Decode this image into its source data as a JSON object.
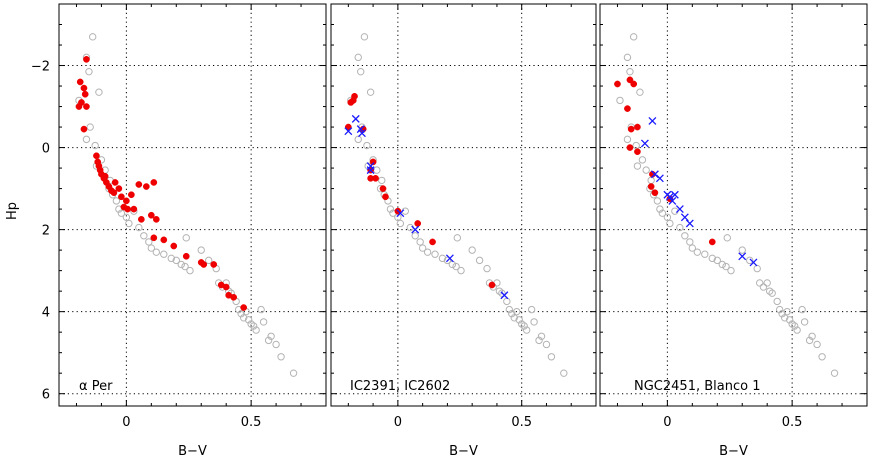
{
  "chart_data": {
    "type": "scatter",
    "shared": {
      "xlabel": "B−V",
      "ylabel": "Hp",
      "xlim": [
        -0.27,
        0.8
      ],
      "ylim": [
        6.3,
        -3.5
      ],
      "x_ticks": [
        0,
        0.5
      ],
      "x_tick_labels": [
        "0",
        "0.5"
      ],
      "y_ticks": [
        -2,
        0,
        2,
        4,
        6
      ],
      "y_tick_labels": [
        "−2",
        "0",
        "2",
        "4",
        "6"
      ],
      "grid": true,
      "reference_sequence": [
        [
          -0.135,
          -2.7
        ],
        [
          -0.16,
          -2.2
        ],
        [
          -0.15,
          -1.85
        ],
        [
          -0.11,
          -1.35
        ],
        [
          -0.19,
          -1.15
        ],
        [
          -0.145,
          -0.5
        ],
        [
          -0.16,
          -0.2
        ],
        [
          -0.125,
          -0.05
        ],
        [
          -0.1,
          0.3
        ],
        [
          -0.12,
          0.45
        ],
        [
          -0.085,
          0.55
        ],
        [
          -0.065,
          0.8
        ],
        [
          -0.07,
          1.0
        ],
        [
          -0.055,
          1.15
        ],
        [
          -0.04,
          1.3
        ],
        [
          -0.03,
          1.5
        ],
        [
          -0.02,
          1.6
        ],
        [
          0.0,
          1.7
        ],
        [
          0.01,
          1.85
        ],
        [
          0.03,
          1.55
        ],
        [
          0.05,
          1.95
        ],
        [
          0.07,
          2.15
        ],
        [
          0.09,
          2.3
        ],
        [
          0.1,
          2.45
        ],
        [
          0.12,
          2.55
        ],
        [
          0.15,
          2.6
        ],
        [
          0.18,
          2.7
        ],
        [
          0.2,
          2.75
        ],
        [
          0.22,
          2.85
        ],
        [
          0.235,
          2.9
        ],
        [
          0.24,
          2.2
        ],
        [
          0.255,
          3.0
        ],
        [
          0.3,
          2.5
        ],
        [
          0.33,
          2.75
        ],
        [
          0.36,
          2.95
        ],
        [
          0.37,
          3.3
        ],
        [
          0.385,
          3.4
        ],
        [
          0.4,
          3.3
        ],
        [
          0.41,
          3.5
        ],
        [
          0.42,
          3.55
        ],
        [
          0.44,
          3.75
        ],
        [
          0.45,
          3.95
        ],
        [
          0.46,
          4.05
        ],
        [
          0.47,
          4.15
        ],
        [
          0.48,
          4.0
        ],
        [
          0.49,
          4.2
        ],
        [
          0.5,
          4.3
        ],
        [
          0.51,
          4.35
        ],
        [
          0.52,
          4.45
        ],
        [
          0.54,
          3.95
        ],
        [
          0.55,
          4.25
        ],
        [
          0.57,
          4.7
        ],
        [
          0.58,
          4.6
        ],
        [
          0.6,
          4.8
        ],
        [
          0.62,
          5.1
        ],
        [
          0.67,
          5.5
        ]
      ]
    },
    "panels": [
      {
        "label": "α Per",
        "series": [
          {
            "marker": "filled-circle",
            "color": "#ee0000",
            "points": [
              [
                -0.16,
                -2.15
              ],
              [
                -0.185,
                -1.6
              ],
              [
                -0.17,
                -1.45
              ],
              [
                -0.165,
                -1.3
              ],
              [
                -0.18,
                -1.1
              ],
              [
                -0.19,
                -1.0
              ],
              [
                -0.16,
                -1.0
              ],
              [
                -0.17,
                -0.45
              ],
              [
                -0.12,
                0.2
              ],
              [
                -0.115,
                0.35
              ],
              [
                -0.11,
                0.45
              ],
              [
                -0.105,
                0.55
              ],
              [
                -0.1,
                0.65
              ],
              [
                -0.09,
                0.75
              ],
              [
                -0.085,
                0.7
              ],
              [
                -0.08,
                0.85
              ],
              [
                -0.07,
                0.95
              ],
              [
                -0.06,
                1.05
              ],
              [
                -0.05,
                1.1
              ],
              [
                -0.045,
                0.85
              ],
              [
                -0.03,
                1.0
              ],
              [
                -0.02,
                1.2
              ],
              [
                0.0,
                1.3
              ],
              [
                0.02,
                1.15
              ],
              [
                0.05,
                0.9
              ],
              [
                0.08,
                0.95
              ],
              [
                0.11,
                0.85
              ],
              [
                -0.01,
                1.45
              ],
              [
                0.005,
                1.5
              ],
              [
                0.03,
                1.5
              ],
              [
                0.06,
                1.75
              ],
              [
                0.1,
                1.65
              ],
              [
                0.12,
                1.75
              ],
              [
                0.11,
                2.2
              ],
              [
                0.15,
                2.25
              ],
              [
                0.19,
                2.4
              ],
              [
                0.24,
                2.65
              ],
              [
                0.3,
                2.8
              ],
              [
                0.31,
                2.85
              ],
              [
                0.35,
                2.85
              ],
              [
                0.38,
                3.35
              ],
              [
                0.4,
                3.4
              ],
              [
                0.41,
                3.6
              ],
              [
                0.43,
                3.65
              ],
              [
                0.47,
                3.9
              ]
            ]
          }
        ]
      },
      {
        "label": "IC2391, IC2602",
        "series": [
          {
            "marker": "filled-circle",
            "color": "#ee0000",
            "points": [
              [
                -0.175,
                -1.25
              ],
              [
                -0.18,
                -1.15
              ],
              [
                -0.19,
                -1.1
              ],
              [
                -0.2,
                -0.5
              ],
              [
                -0.14,
                -0.45
              ],
              [
                -0.1,
                0.35
              ],
              [
                -0.11,
                0.55
              ],
              [
                -0.11,
                0.75
              ],
              [
                -0.09,
                0.75
              ],
              [
                -0.06,
                1.0
              ],
              [
                -0.05,
                1.2
              ],
              [
                0.0,
                1.55
              ],
              [
                0.08,
                1.85
              ],
              [
                0.14,
                2.3
              ],
              [
                0.38,
                3.35
              ]
            ]
          },
          {
            "marker": "cross",
            "color": "#1a1aff",
            "points": [
              [
                -0.2,
                -0.4
              ],
              [
                -0.17,
                -0.7
              ],
              [
                -0.15,
                -0.45
              ],
              [
                -0.145,
                -0.35
              ],
              [
                -0.11,
                0.45
              ],
              [
                -0.11,
                0.55
              ],
              [
                0.01,
                1.6
              ],
              [
                0.07,
                2.0
              ],
              [
                0.21,
                2.7
              ],
              [
                0.43,
                3.6
              ]
            ]
          }
        ]
      },
      {
        "label": "NGC2451, Blanco 1",
        "series": [
          {
            "marker": "filled-circle",
            "color": "#ee0000",
            "points": [
              [
                -0.2,
                -1.55
              ],
              [
                -0.15,
                -1.65
              ],
              [
                -0.135,
                -1.55
              ],
              [
                -0.16,
                -0.95
              ],
              [
                -0.12,
                -0.5
              ],
              [
                -0.145,
                -0.45
              ],
              [
                -0.15,
                0.0
              ],
              [
                -0.12,
                0.1
              ],
              [
                -0.06,
                0.65
              ],
              [
                -0.065,
                0.95
              ],
              [
                -0.05,
                1.1
              ],
              [
                0.01,
                1.25
              ],
              [
                0.18,
                2.3
              ]
            ]
          },
          {
            "marker": "cross",
            "color": "#1a1aff",
            "points": [
              [
                -0.06,
                -0.65
              ],
              [
                -0.09,
                -0.1
              ],
              [
                -0.05,
                0.65
              ],
              [
                -0.03,
                0.75
              ],
              [
                0.0,
                1.15
              ],
              [
                0.01,
                1.2
              ],
              [
                0.02,
                1.3
              ],
              [
                0.03,
                1.15
              ],
              [
                0.05,
                1.5
              ],
              [
                0.07,
                1.7
              ],
              [
                0.09,
                1.85
              ],
              [
                0.3,
                2.65
              ],
              [
                0.345,
                2.8
              ]
            ]
          }
        ]
      }
    ]
  }
}
